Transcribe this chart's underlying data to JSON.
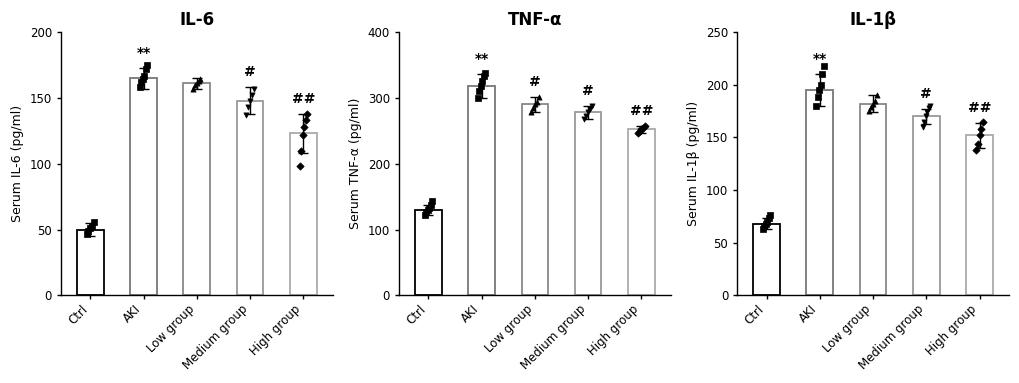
{
  "charts": [
    {
      "title": "IL-6",
      "ylabel": "Serum IL-6 (pg/ml)",
      "ylim": [
        0,
        200
      ],
      "yticks": [
        0,
        50,
        100,
        150,
        200
      ],
      "categories": [
        "Ctrl",
        "AKI",
        "Low group",
        "Medium group",
        "High group"
      ],
      "means": [
        50,
        165,
        161,
        148,
        123
      ],
      "errors": [
        5,
        8,
        4,
        10,
        15
      ],
      "annotations": [
        "",
        "**",
        "",
        "#",
        "##"
      ],
      "dot_data": [
        [
          47,
          49,
          51,
          53,
          56
        ],
        [
          158,
          162,
          164,
          167,
          172,
          175
        ],
        [
          157,
          160,
          161,
          163,
          164
        ],
        [
          137,
          143,
          148,
          152,
          157
        ],
        [
          98,
          110,
          122,
          128,
          133,
          138
        ]
      ],
      "dot_markers": [
        "s",
        "s",
        "^",
        "v",
        "D"
      ]
    },
    {
      "title": "TNF-α",
      "ylabel": "Serum TNF-α (pg/ml)",
      "ylim": [
        0,
        400
      ],
      "yticks": [
        0,
        100,
        200,
        300,
        400
      ],
      "categories": [
        "Ctrl",
        "AKI",
        "Low group",
        "Medium group",
        "High group"
      ],
      "means": [
        130,
        318,
        290,
        278,
        252
      ],
      "errors": [
        8,
        18,
        12,
        10,
        5
      ],
      "annotations": [
        "",
        "**",
        "#",
        "#",
        "##"
      ],
      "dot_data": [
        [
          122,
          126,
          130,
          132,
          138,
          143
        ],
        [
          300,
          310,
          318,
          325,
          333,
          338
        ],
        [
          278,
          285,
          290,
          294,
          302
        ],
        [
          268,
          273,
          278,
          283,
          288
        ],
        [
          247,
          250,
          252,
          254,
          257
        ]
      ],
      "dot_markers": [
        "s",
        "s",
        "^",
        "v",
        "D"
      ]
    },
    {
      "title": "IL-1β",
      "ylabel": "Serum IL-1β (pg/ml)",
      "ylim": [
        0,
        250
      ],
      "yticks": [
        0,
        50,
        100,
        150,
        200,
        250
      ],
      "categories": [
        "Ctrl",
        "AKI",
        "Low group",
        "Medium group",
        "High group"
      ],
      "means": [
        68,
        195,
        182,
        170,
        152
      ],
      "errors": [
        5,
        15,
        8,
        7,
        12
      ],
      "annotations": [
        "",
        "**",
        "",
        "#",
        "##"
      ],
      "dot_data": [
        [
          63,
          66,
          68,
          70,
          73,
          76
        ],
        [
          180,
          188,
          195,
          200,
          210,
          218
        ],
        [
          175,
          179,
          182,
          185,
          190
        ],
        [
          160,
          165,
          170,
          174,
          178,
          180
        ],
        [
          138,
          144,
          152,
          158,
          165
        ]
      ],
      "dot_markers": [
        "s",
        "s",
        "^",
        "v",
        "D"
      ]
    }
  ],
  "background_color": "#ffffff",
  "bar_width": 0.5,
  "title_fontsize": 12,
  "label_fontsize": 9,
  "tick_fontsize": 8.5,
  "annot_fontsize": 10,
  "edge_colors": [
    "#000000",
    "#777777",
    "#888888",
    "#999999",
    "#aaaaaa"
  ]
}
